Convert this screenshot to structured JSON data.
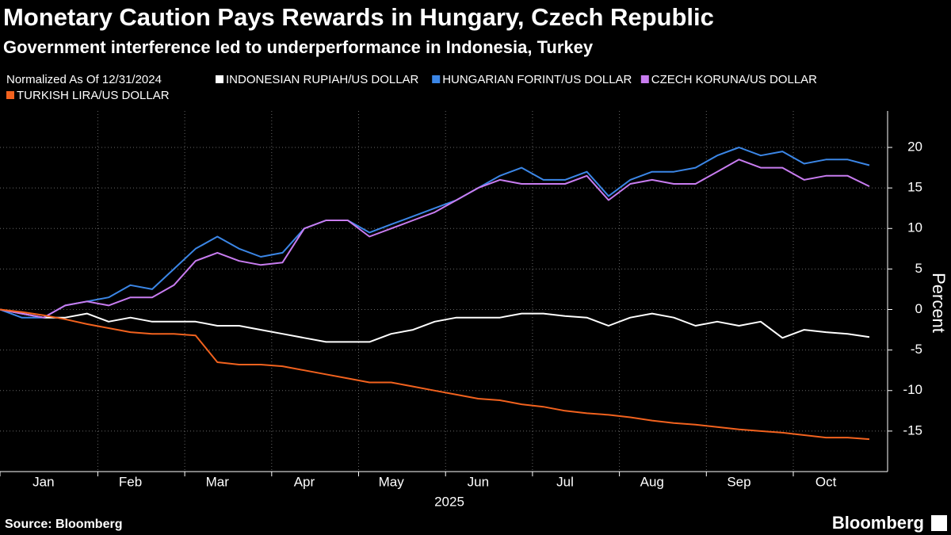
{
  "chart_data": {
    "type": "line",
    "title": "Monetary Caution Pays Rewards in Hungary, Czech Republic",
    "subtitle": "Government interference led to underperformance in Indonesia, Turkey",
    "legend_title": "Normalized As Of 12/31/2024",
    "xlabel": "2025",
    "ylabel": "Percent",
    "source": "Source: Bloomberg",
    "brand": "Bloomberg",
    "categories": [
      null,
      null,
      "Jan",
      null,
      null,
      null,
      "Feb",
      null,
      null,
      null,
      "Mar",
      null,
      null,
      null,
      "Apr",
      null,
      null,
      null,
      "May",
      null,
      null,
      null,
      "Jun",
      null,
      null,
      null,
      "Jul",
      null,
      null,
      null,
      "Aug",
      null,
      null,
      null,
      "Sep",
      null,
      null,
      null,
      "Oct",
      null,
      null
    ],
    "series": [
      {
        "name": "INDONESIAN RUPIAH/US DOLLAR",
        "color": "#ffffff",
        "values": [
          0,
          -0.5,
          -1,
          -1,
          -0.5,
          -1.5,
          -1,
          -1.5,
          -1.5,
          -1.5,
          -2,
          -2,
          -2.5,
          -3,
          -3.5,
          -4,
          -4,
          -4,
          -3,
          -2.5,
          -1.5,
          -1,
          -1,
          -1,
          -0.5,
          -0.5,
          -0.8,
          -1,
          -2,
          -1,
          -0.5,
          -1,
          -2,
          -1.5,
          -2,
          -1.5,
          -3.5,
          -2.5,
          -2.8,
          -3,
          -3.4
        ]
      },
      {
        "name": "HUNGARIAN FORINT/US DOLLAR",
        "color": "#3b86e6",
        "values": [
          0,
          -1,
          -1,
          0.5,
          1,
          1.5,
          3,
          2.5,
          5,
          7.5,
          9,
          7.5,
          6.5,
          7,
          10,
          11,
          11,
          9.5,
          10.5,
          11.5,
          12.5,
          13.5,
          15,
          16.5,
          17.5,
          16,
          16,
          17,
          14,
          16,
          17,
          17,
          17.5,
          19,
          20,
          19,
          19.5,
          18,
          18.5,
          18.5,
          17.8
        ]
      },
      {
        "name": "CZECH KORUNA/US DOLLAR",
        "color": "#c87cf0",
        "values": [
          0,
          -0.5,
          -1,
          0.5,
          1,
          0.5,
          1.5,
          1.5,
          3,
          6,
          7,
          6,
          5.5,
          5.8,
          10,
          11,
          11,
          9,
          10,
          11,
          12,
          13.5,
          15,
          16,
          15.5,
          15.5,
          15.5,
          16.5,
          13.5,
          15.5,
          16,
          15.5,
          15.5,
          17,
          18.5,
          17.5,
          17.5,
          16,
          16.5,
          16.5,
          15.2
        ]
      },
      {
        "name": "TURKISH LIRA/US DOLLAR",
        "color": "#f2621e",
        "values": [
          0,
          -0.3,
          -0.7,
          -1.2,
          -1.8,
          -2.3,
          -2.8,
          -3,
          -3,
          -3.2,
          -6.5,
          -6.8,
          -6.8,
          -7,
          -7.5,
          -8,
          -8.5,
          -9,
          -9,
          -9.5,
          -10,
          -10.5,
          -11,
          -11.2,
          -11.7,
          -12,
          -12.5,
          -12.8,
          -13,
          -13.3,
          -13.7,
          -14,
          -14.2,
          -14.5,
          -14.8,
          -15,
          -15.2,
          -15.5,
          -15.8,
          -15.8,
          -16
        ]
      }
    ],
    "ylim": [
      -20,
      24.5
    ],
    "yticks": [
      -15,
      -10,
      -5,
      0,
      5,
      10,
      15,
      20
    ],
    "grid": true
  }
}
